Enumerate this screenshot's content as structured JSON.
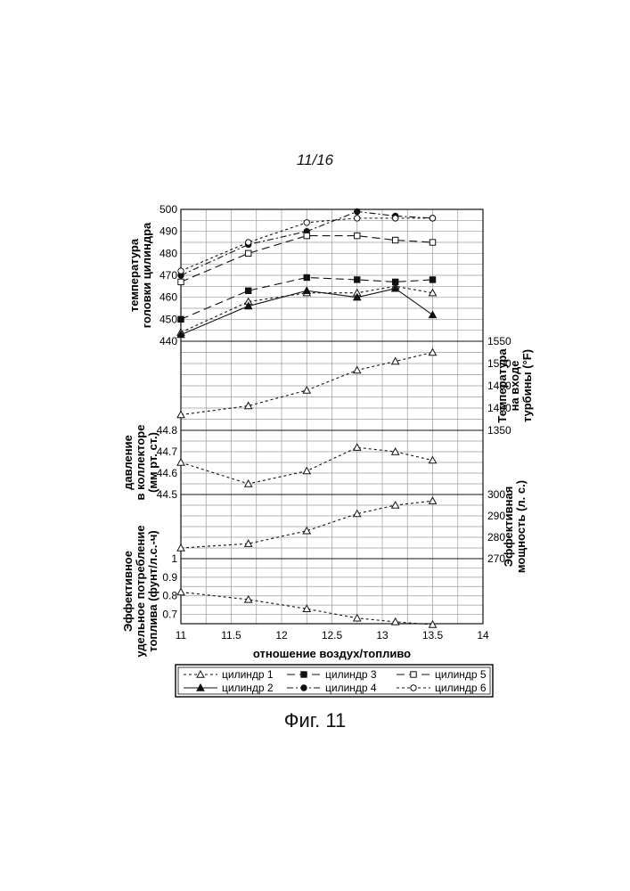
{
  "page_number": "11/16",
  "figure_caption": "Фиг. 11",
  "chart_data": {
    "type": "line",
    "xlabel": "отношение воздух/топливо",
    "xlim": [
      11,
      14
    ],
    "x_ticks": [
      "11",
      "11.5",
      "12",
      "12.5",
      "13",
      "13.5",
      "14"
    ],
    "panels": [
      {
        "name": "head-temp",
        "side": "left",
        "ylabel_lines": [
          "температура",
          "головки цилиндра"
        ],
        "ylim": [
          440,
          500
        ],
        "y_ticks": [
          "440",
          "450",
          "460",
          "470",
          "480",
          "490",
          "500"
        ],
        "series": [
          {
            "key": "c1",
            "x": [
              11.0,
              11.67,
              12.25,
              12.75,
              13.13,
              13.5
            ],
            "y": [
              444,
              458,
              462,
              462,
              465,
              462
            ]
          },
          {
            "key": "c2",
            "x": [
              11.0,
              11.67,
              12.25,
              12.75,
              13.13,
              13.5
            ],
            "y": [
              443,
              456,
              463,
              460,
              464,
              452
            ]
          },
          {
            "key": "c3",
            "x": [
              11.0,
              11.67,
              12.25,
              12.75,
              13.13,
              13.5
            ],
            "y": [
              450,
              463,
              469,
              468,
              467,
              468
            ]
          },
          {
            "key": "c4",
            "x": [
              11.0,
              11.67,
              12.25,
              12.75,
              13.13,
              13.5
            ],
            "y": [
              470,
              484,
              490,
              499,
              497,
              496
            ]
          },
          {
            "key": "c5",
            "x": [
              11.0,
              11.67,
              12.25,
              12.75,
              13.13,
              13.5
            ],
            "y": [
              467,
              480,
              488,
              488,
              486,
              485
            ]
          },
          {
            "key": "c6",
            "x": [
              11.0,
              11.67,
              12.25,
              12.75,
              13.13,
              13.5
            ],
            "y": [
              472,
              485,
              494,
              496,
              496,
              496
            ]
          }
        ]
      },
      {
        "name": "turbine-temp",
        "side": "right",
        "ylabel_lines": [
          "Температура",
          "на входе",
          "турбины (°F)"
        ],
        "ylim": [
          1350,
          1550
        ],
        "y_ticks": [
          "1350",
          "1400",
          "1450",
          "1500",
          "1550"
        ],
        "series": [
          {
            "key": "c1",
            "x": [
              11.0,
              11.67,
              12.25,
              12.75,
              13.13,
              13.5
            ],
            "y": [
              1385,
              1405,
              1440,
              1485,
              1505,
              1525
            ]
          }
        ]
      },
      {
        "name": "manifold-pressure",
        "side": "left",
        "ylabel_lines": [
          "давление",
          "в коллекторе",
          "(мм рт. ст.)"
        ],
        "ylim": [
          44.5,
          44.8
        ],
        "y_ticks": [
          "44.5",
          "44.6",
          "44.7",
          "44.8"
        ],
        "series": [
          {
            "key": "c1",
            "x": [
              11.0,
              11.67,
              12.25,
              12.75,
              13.13,
              13.5
            ],
            "y": [
              44.65,
              44.55,
              44.61,
              44.72,
              44.7,
              44.66
            ]
          }
        ]
      },
      {
        "name": "power",
        "side": "right",
        "ylabel_lines": [
          "Эффективная",
          "мощность (л. с.)"
        ],
        "ylim": [
          270,
          300
        ],
        "y_ticks": [
          "270",
          "280",
          "290",
          "300"
        ],
        "series": [
          {
            "key": "c1",
            "x": [
              11.0,
              11.67,
              12.25,
              12.75,
              13.13,
              13.5
            ],
            "y": [
              275,
              277,
              283,
              291,
              295,
              297
            ]
          }
        ]
      },
      {
        "name": "fuel-consumption",
        "side": "left",
        "ylabel_lines": [
          "Эффективное",
          "удельное потребление",
          "топлива (фунт/л.с.-ч)"
        ],
        "ylim": [
          0.65,
          1.0
        ],
        "y_ticks": [
          "0.7",
          "0.8",
          "0.9",
          "1"
        ],
        "series": [
          {
            "key": "c1",
            "x": [
              11.0,
              11.67,
              12.25,
              12.75,
              13.13,
              13.5
            ],
            "y": [
              0.82,
              0.78,
              0.73,
              0.68,
              0.66,
              0.645
            ]
          }
        ]
      }
    ],
    "legend_placement": "bottom",
    "legend": [
      {
        "key": "c1",
        "name": "цилиндр 1",
        "marker": "triangle-open",
        "dash": "short"
      },
      {
        "key": "c2",
        "name": "цилиндр 2",
        "marker": "triangle-filled",
        "dash": "solid"
      },
      {
        "key": "c3",
        "name": "цилиндр 3",
        "marker": "square-filled",
        "dash": "long"
      },
      {
        "key": "c4",
        "name": "цилиндр 4",
        "marker": "circle-filled",
        "dash": "dashdot"
      },
      {
        "key": "c5",
        "name": "цилиндр 5",
        "marker": "square-open",
        "dash": "long"
      },
      {
        "key": "c6",
        "name": "цилиндр 6",
        "marker": "circle-open",
        "dash": "short"
      }
    ]
  }
}
